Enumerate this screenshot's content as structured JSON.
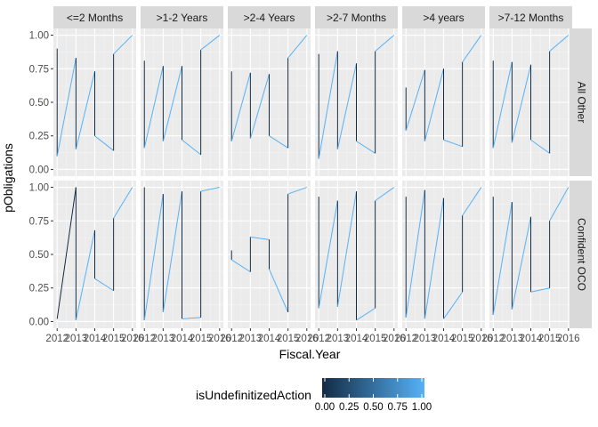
{
  "chart_data": {
    "type": "line",
    "xlabel": "Fiscal.Year",
    "ylabel": "pObligations",
    "columns": [
      "<=2 Months",
      ">1-2 Years",
      ">2-4 Years",
      ">2-7 Months",
      ">4 years",
      ">7-12 Months"
    ],
    "rows": [
      "All Other",
      "Confident OCO"
    ],
    "x_ticks": [
      2012,
      2013,
      2014,
      2015,
      2016
    ],
    "x_tick_labels": [
      "2012",
      "2013",
      "2014",
      "2015",
      "2016"
    ],
    "y_ticks": [
      0,
      0.25,
      0.5,
      0.75,
      1
    ],
    "y_tick_labels": [
      "0.00",
      "0.25",
      "0.50",
      "0.75",
      "1.00"
    ],
    "xlim": [
      2011.8,
      2016.2
    ],
    "ylim": [
      -0.05,
      1.05
    ],
    "legend": {
      "title": "isUndefinitizedAction",
      "position": "bottom",
      "ticks": [
        "0.00",
        "0.25",
        "0.50",
        "0.75",
        "1.00"
      ],
      "low_color": "#132B43",
      "high_color": "#56B1F7"
    },
    "panel_bg": "#EBEBEB",
    "strip_bg": "#D9D9D9",
    "panels": [
      {
        "row": 0,
        "col": 0,
        "points": [
          [
            2012,
            0.9,
            0
          ],
          [
            2012,
            0.1,
            1
          ],
          [
            2013,
            0.83,
            0
          ],
          [
            2013,
            0.15,
            1
          ],
          [
            2014,
            0.73,
            0
          ],
          [
            2014,
            0.25,
            1
          ],
          [
            2015,
            0.14,
            0
          ],
          [
            2015,
            0.86,
            1
          ],
          [
            2016,
            1.0,
            0
          ]
        ]
      },
      {
        "row": 0,
        "col": 1,
        "points": [
          [
            2012,
            0.81,
            0
          ],
          [
            2012,
            0.16,
            1
          ],
          [
            2013,
            0.77,
            0
          ],
          [
            2013,
            0.21,
            1
          ],
          [
            2014,
            0.77,
            0
          ],
          [
            2014,
            0.22,
            1
          ],
          [
            2015,
            0.11,
            0
          ],
          [
            2015,
            0.89,
            1
          ],
          [
            2016,
            1.0,
            0
          ]
        ]
      },
      {
        "row": 0,
        "col": 2,
        "points": [
          [
            2012,
            0.73,
            0
          ],
          [
            2012,
            0.21,
            1
          ],
          [
            2013,
            0.72,
            0
          ],
          [
            2013,
            0.23,
            1
          ],
          [
            2014,
            0.71,
            0
          ],
          [
            2014,
            0.25,
            1
          ],
          [
            2015,
            0.16,
            0
          ],
          [
            2015,
            0.83,
            1
          ],
          [
            2016,
            1.0,
            0
          ]
        ]
      },
      {
        "row": 0,
        "col": 3,
        "points": [
          [
            2012,
            0.86,
            0
          ],
          [
            2012,
            0.08,
            1
          ],
          [
            2013,
            0.88,
            0
          ],
          [
            2013,
            0.15,
            1
          ],
          [
            2014,
            0.79,
            0
          ],
          [
            2014,
            0.21,
            1
          ],
          [
            2015,
            0.12,
            0
          ],
          [
            2015,
            0.88,
            1
          ],
          [
            2016,
            1.0,
            0
          ]
        ]
      },
      {
        "row": 0,
        "col": 4,
        "points": [
          [
            2012,
            0.61,
            0
          ],
          [
            2012,
            0.29,
            1
          ],
          [
            2013,
            0.74,
            0
          ],
          [
            2013,
            0.21,
            1
          ],
          [
            2014,
            0.75,
            0
          ],
          [
            2014,
            0.22,
            1
          ],
          [
            2015,
            0.17,
            0
          ],
          [
            2015,
            0.8,
            1
          ],
          [
            2016,
            1.0,
            0
          ]
        ]
      },
      {
        "row": 0,
        "col": 5,
        "points": [
          [
            2012,
            0.81,
            0
          ],
          [
            2012,
            0.16,
            1
          ],
          [
            2013,
            0.8,
            0
          ],
          [
            2013,
            0.2,
            1
          ],
          [
            2014,
            0.78,
            0
          ],
          [
            2014,
            0.22,
            1
          ],
          [
            2015,
            0.12,
            0
          ],
          [
            2015,
            0.88,
            1
          ],
          [
            2016,
            1.0,
            0
          ]
        ]
      },
      {
        "row": 1,
        "col": 0,
        "points": [
          [
            2012,
            0.02,
            0
          ],
          [
            2013,
            1.0,
            0
          ],
          [
            2013,
            0.01,
            1
          ],
          [
            2014,
            0.68,
            0
          ],
          [
            2014,
            0.32,
            1
          ],
          [
            2015,
            0.23,
            0
          ],
          [
            2015,
            0.77,
            1
          ],
          [
            2016,
            1.0,
            0
          ]
        ]
      },
      {
        "row": 1,
        "col": 1,
        "points": [
          [
            2012,
            1.0,
            0
          ],
          [
            2012,
            0.01,
            1
          ],
          [
            2013,
            0.95,
            0
          ],
          [
            2013,
            0.07,
            1
          ],
          [
            2014,
            0.97,
            0
          ],
          [
            2014,
            0.02,
            1
          ],
          [
            2015,
            0.03,
            0
          ],
          [
            2015,
            0.97,
            1
          ],
          [
            2016,
            1.0,
            0
          ]
        ]
      },
      {
        "row": 1,
        "col": 2,
        "points": [
          [
            2012,
            0.53,
            0
          ],
          [
            2012,
            0.46,
            1
          ],
          [
            2013,
            0.37,
            0
          ],
          [
            2013,
            0.63,
            1
          ],
          [
            2014,
            0.61,
            0
          ],
          [
            2014,
            0.39,
            1
          ],
          [
            2015,
            0.07,
            0
          ],
          [
            2015,
            0.95,
            1
          ],
          [
            2016,
            1.0,
            0
          ]
        ]
      },
      {
        "row": 1,
        "col": 3,
        "points": [
          [
            2012,
            0.93,
            0
          ],
          [
            2012,
            0.1,
            1
          ],
          [
            2013,
            0.9,
            0
          ],
          [
            2013,
            0.11,
            1
          ],
          [
            2014,
            0.97,
            0
          ],
          [
            2014,
            0.01,
            1
          ],
          [
            2015,
            0.1,
            0
          ],
          [
            2015,
            0.9,
            1
          ],
          [
            2016,
            1.0,
            0
          ]
        ]
      },
      {
        "row": 1,
        "col": 4,
        "points": [
          [
            2012,
            0.93,
            0
          ],
          [
            2012,
            0.03,
            1
          ],
          [
            2013,
            0.98,
            0
          ],
          [
            2013,
            0.02,
            1
          ],
          [
            2014,
            0.92,
            0
          ],
          [
            2014,
            0.02,
            1
          ],
          [
            2015,
            0.22,
            0
          ],
          [
            2015,
            0.79,
            1
          ],
          [
            2016,
            1.0,
            0
          ]
        ]
      },
      {
        "row": 1,
        "col": 5,
        "points": [
          [
            2012,
            0.93,
            0
          ],
          [
            2012,
            0.05,
            1
          ],
          [
            2013,
            0.89,
            0
          ],
          [
            2013,
            0.09,
            1
          ],
          [
            2014,
            0.78,
            0
          ],
          [
            2014,
            0.22,
            1
          ],
          [
            2015,
            0.25,
            0
          ],
          [
            2015,
            0.75,
            1
          ],
          [
            2016,
            1.0,
            0
          ]
        ]
      }
    ]
  }
}
